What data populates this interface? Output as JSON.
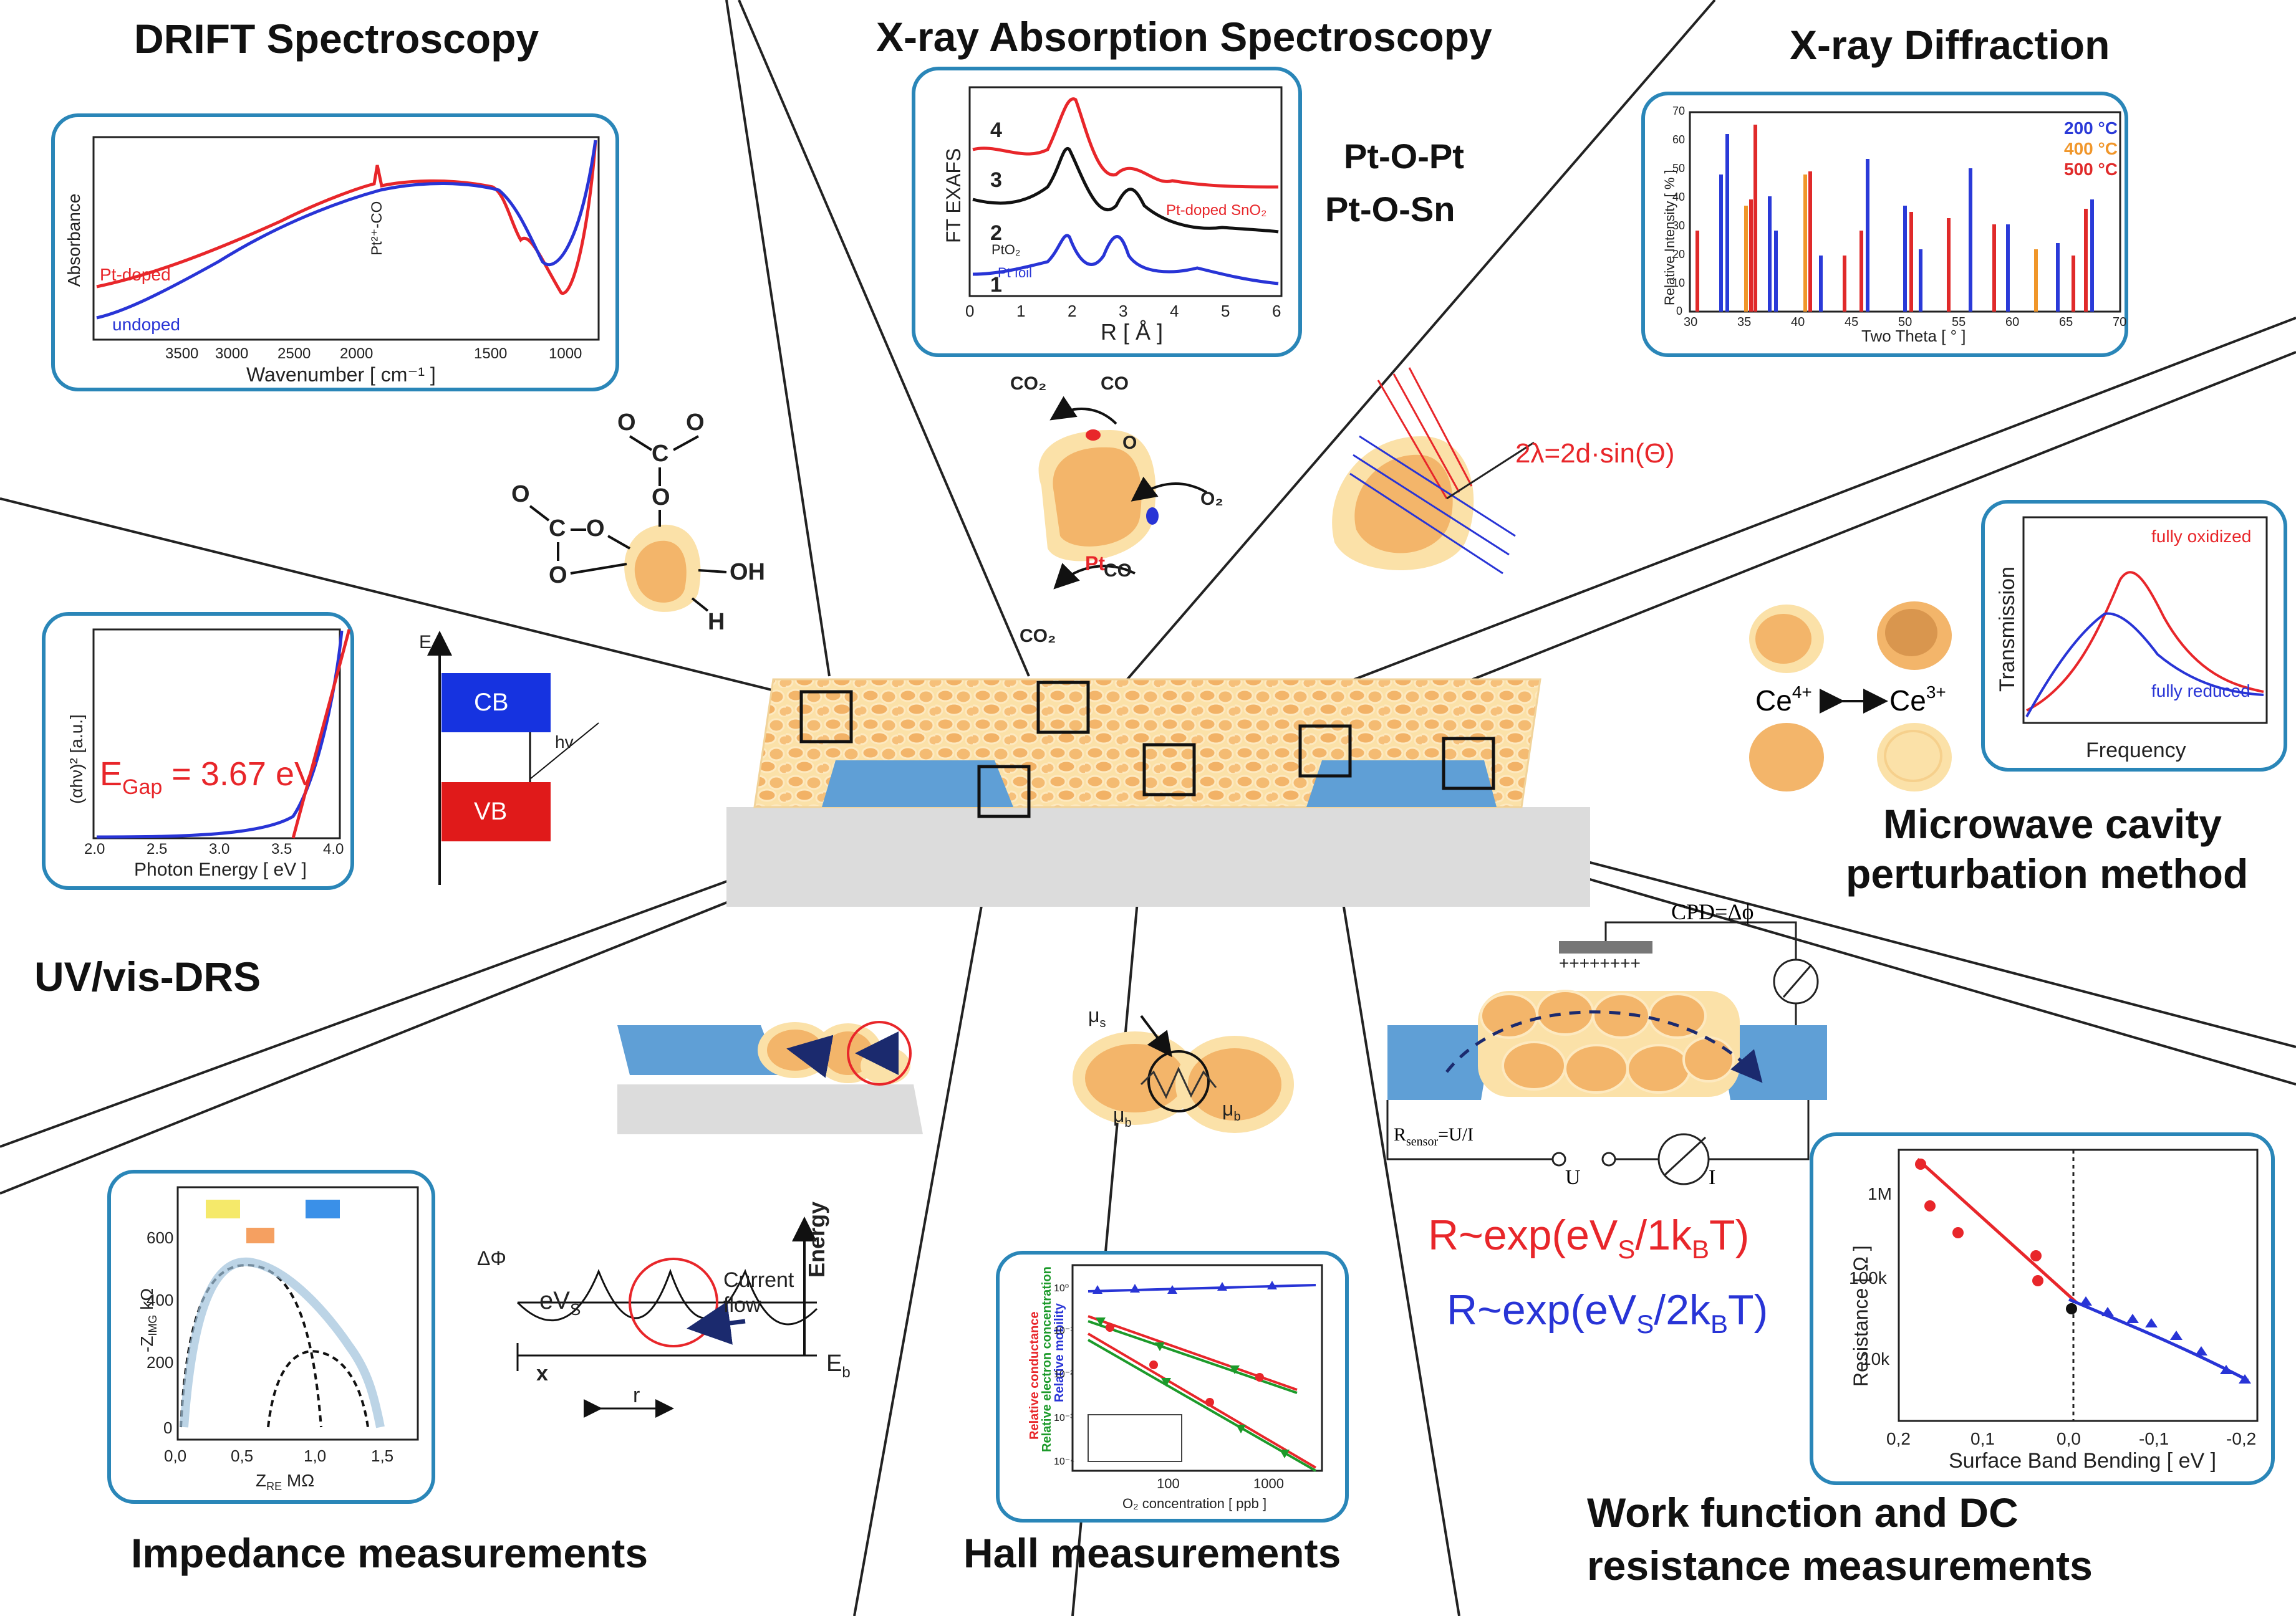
{
  "titles": {
    "drift": "DRIFT Spectroscopy",
    "xas": "X-ray Absorption Spectroscopy",
    "xrd": "X-ray Diffraction",
    "uvvis": "UV/vis-DRS",
    "microwave_1": "Microwave cavity",
    "microwave_2": "perturbation method",
    "impedance": "Impedance measurements",
    "hall": "Hall measurements",
    "workfunction_1": "Work function and DC",
    "workfunction_2": "resistance measurements"
  },
  "drift_panel": {
    "ylabel": "Absorbance",
    "xlabel": "Wavenumber [ cm⁻¹ ]",
    "ticks": [
      "3500",
      "3000",
      "2500",
      "2000",
      "1500",
      "1000"
    ],
    "label_pt": "Pt-doped",
    "label_undoped": "undoped",
    "annotation": "Pt²⁺-CO"
  },
  "xas_panel": {
    "ylabel": "FT EXAFS",
    "xlabel": "R [ Å ]",
    "xticks": [
      "0",
      "1",
      "2",
      "3",
      "4",
      "5",
      "6"
    ],
    "curve_numbers": [
      "4",
      "3",
      "2",
      "1"
    ],
    "label_ptdoped": "Pt-doped SnO₂",
    "label_pto2": "PtO₂",
    "label_foil": "Pt foil",
    "side_1": "Pt-O-Pt",
    "side_2": "Pt-O-Sn"
  },
  "xrd_panel": {
    "ylabel": "Relative Intensity [ % ]",
    "xlabel": "Two Theta [ ° ]",
    "xticks": [
      "30",
      "35",
      "40",
      "45",
      "50",
      "55",
      "60",
      "65",
      "70"
    ],
    "yticks": [
      "0",
      "10",
      "20",
      "30",
      "40",
      "50",
      "60",
      "70"
    ],
    "legend": [
      {
        "label": "200 °C",
        "color": "#2a3ad8"
      },
      {
        "label": "400 °C",
        "color": "#f0962a"
      },
      {
        "label": "500 °C",
        "color": "#e02a2a"
      }
    ],
    "bragg": "2λ=2d·sin(Θ)"
  },
  "mechanism": {
    "co2_top": "CO₂",
    "co_top": "CO",
    "o": "O",
    "o2": "O₂",
    "pt": "Pt",
    "co2_bottom": "CO₂",
    "co_bottom": "CO",
    "oh": "OH",
    "h": "H",
    "o_atom": "O",
    "c_atom": "C"
  },
  "uvvis_panel": {
    "ylabel": "(αhν)² [a.u.]",
    "xlabel": "Photon Energy [ eV ]",
    "xticks": [
      "2.0",
      "2.5",
      "3.0",
      "3.5",
      "4.0"
    ],
    "egap_prefix": "E",
    "egap_sub": "Gap",
    "egap_value": " = 3.67 eV"
  },
  "band": {
    "e": "E",
    "cb": "CB",
    "vb": "VB",
    "hv": "hv"
  },
  "microwave_panel": {
    "ylabel": "Transmission",
    "xlabel": "Frequency",
    "oxidized": "fully oxidized",
    "reduced": "fully reduced",
    "ce4": "Ce",
    "ce4_sup": "4+",
    "ce3": "Ce",
    "ce3_sup": "3+"
  },
  "workfunction": {
    "cpd": "CPD=Δϕ",
    "plus": "++++++++",
    "rsensor": "R",
    "rsensor_sub": "sensor",
    "rsensor_tail": "=U/I",
    "u": "U",
    "i": "I",
    "eq1": "R~exp(eV",
    "eq1_sub": "S",
    "eq1_tail": "/1k",
    "eq1_b": "B",
    "eq1_end": "T)",
    "eq2": "R~exp(eV",
    "eq2_sub": "S",
    "eq2_tail": "/2k",
    "eq2_b": "B",
    "eq2_end": "T)",
    "plot_ylabel": "Resistance [ Ω ]",
    "plot_xlabel": "Surface Band Bending [ eV ]",
    "plot_xticks": [
      "0,2",
      "0,1",
      "0,0",
      "-0,1",
      "-0,2"
    ],
    "plot_yticks": [
      "1M",
      "100k",
      "10k"
    ]
  },
  "impedance": {
    "ylabel": "-Z",
    "ylabel_sub": "IMG",
    "ylabel_unit": " kΩ",
    "xlabel": "Z",
    "xlabel_sub": "RE",
    "xlabel_unit": " MΩ",
    "xticks": [
      "0,0",
      "0,5",
      "1,0",
      "1,5"
    ],
    "yticks": [
      "0",
      "200",
      "400",
      "600"
    ],
    "delta_phi": "ΔΦ",
    "evs": "eV",
    "evs_sub": "S",
    "current_flow_1": "Current",
    "current_flow_2": "flow",
    "energy": "Energy",
    "eb": "E",
    "eb_sub": "b",
    "x": "x",
    "r": "r"
  },
  "hall": {
    "mu_s": "μ",
    "mu_s_sub": "s",
    "mu_b": "μ",
    "mu_b_sub": "b",
    "plot_xlabel": "O₂ concentration [ ppb ]",
    "ylabel_red": "Relative conductance",
    "ylabel_green": "Relative electron concentration",
    "ylabel_blue": "Relative mobility",
    "xticks": [
      "100",
      "1000"
    ],
    "yticks": [
      "10⁰",
      "10⁻¹",
      "10⁻²",
      "10⁻³",
      "10⁻⁴"
    ]
  },
  "colors": {
    "panel_border": "#2a86b8",
    "red": "#e8262a",
    "blue": "#2834d6",
    "grain_fill": "#f6c98a",
    "grain_edge": "#fbe3ad",
    "electrode": "#5f9fd6",
    "substrate": "#d9d9d9"
  }
}
